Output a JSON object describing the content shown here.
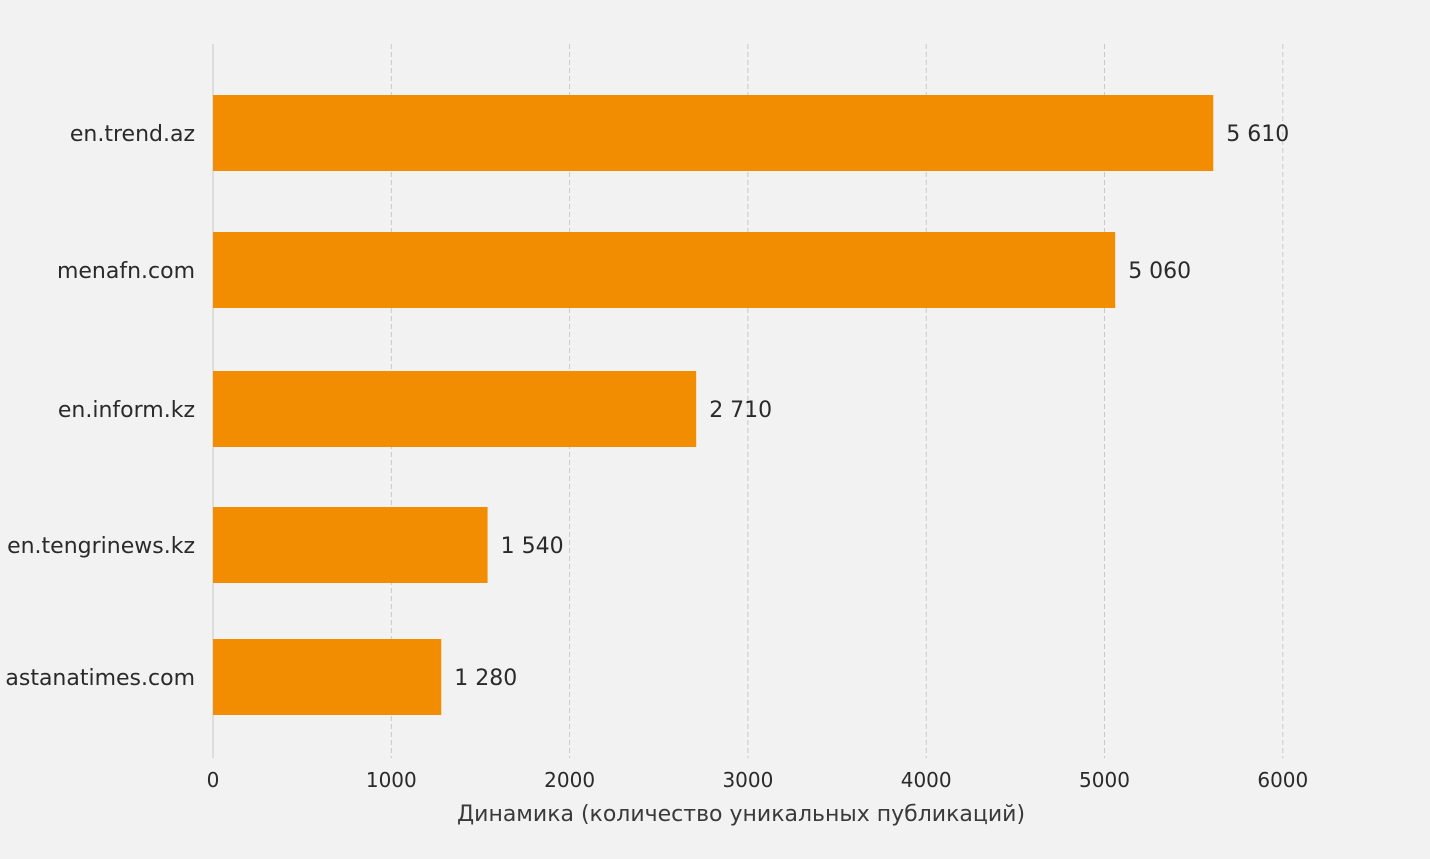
{
  "chart_data": {
    "type": "bar",
    "orientation": "horizontal",
    "categories": [
      "en.trend.az",
      "menafn.com",
      "en.inform.kz",
      "en.tengrinews.kz",
      "astanatimes.com"
    ],
    "values": [
      5610,
      5060,
      2710,
      1540,
      1280
    ],
    "value_labels": [
      "5 610",
      "5 060",
      "2 710",
      "1 540",
      "1 280"
    ],
    "title": "",
    "xlabel": "Динамика (количество уникальных публикаций)",
    "ylabel": "",
    "xlim": [
      0,
      6000
    ],
    "xticks": [
      0,
      1000,
      2000,
      3000,
      4000,
      5000,
      6000
    ],
    "grid": "vertical-dashed",
    "bar_color": "#f28c00",
    "grid_color": "#c8c8c8",
    "background": "#f2f2f2"
  }
}
